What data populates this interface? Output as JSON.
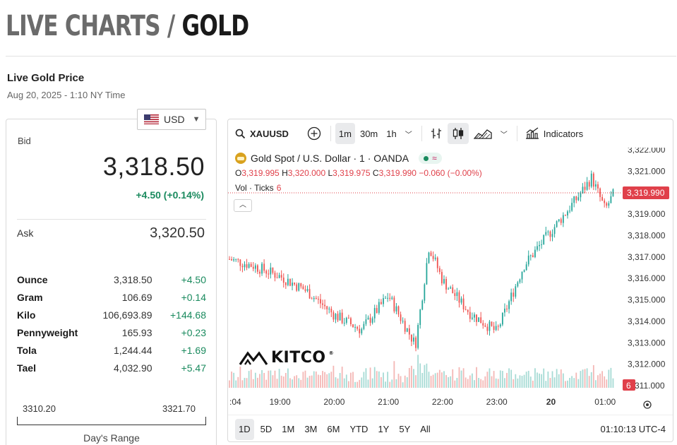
{
  "page": {
    "title_prefix": "LIVE CHARTS / ",
    "title_main": "GOLD",
    "price_heading": "Live Gold Price",
    "timestamp": "Aug 20, 2025 - 1:10 NY Time"
  },
  "currency": {
    "selected": "USD",
    "icon": "us-flag-icon"
  },
  "quote": {
    "bid_label": "Bid",
    "bid": "3,318.50",
    "change": "+4.50 (+0.14%)",
    "ask_label": "Ask",
    "ask": "3,320.50",
    "positive_color": "#1a8a5e"
  },
  "units": [
    {
      "name": "Ounce",
      "price": "3,318.50",
      "change": "+4.50"
    },
    {
      "name": "Gram",
      "price": "106.69",
      "change": "+0.14"
    },
    {
      "name": "Kilo",
      "price": "106,693.89",
      "change": "+144.68"
    },
    {
      "name": "Pennyweight",
      "price": "165.93",
      "change": "+0.23"
    },
    {
      "name": "Tola",
      "price": "1,244.44",
      "change": "+1.69"
    },
    {
      "name": "Tael",
      "price": "4,032.90",
      "change": "+5.47"
    }
  ],
  "day_range": {
    "low": "3310.20",
    "high": "3321.70",
    "label": "Day's Range"
  },
  "chart_toolbar": {
    "symbol": "XAUUSD",
    "intervals": [
      "1m",
      "30m",
      "1h"
    ],
    "active_interval": "1m",
    "indicators_label": "Indicators"
  },
  "chart_legend": {
    "title": "Gold Spot / U.S. Dollar · 1 · OANDA",
    "status_text": "≈",
    "open": "3,319.995",
    "high": "3,320.000",
    "low": "3,319.975",
    "close": "3,319.990",
    "change": "−0.060 (−0.00%)",
    "vol_label": "Vol · Ticks",
    "vol_value": "6"
  },
  "brand": {
    "logo_text": "KITCO",
    "registered": "®"
  },
  "range_buttons": [
    "1D",
    "5D",
    "1M",
    "3M",
    "6M",
    "YTD",
    "1Y",
    "5Y",
    "All"
  ],
  "active_range": "1D",
  "clock": "01:10:13 UTC-4",
  "chart_data": {
    "type": "candlestick",
    "y_ticks": [
      "3,322.000",
      "3,321.000",
      "3,320.000",
      "3,319.000",
      "3,318.000",
      "3,317.000",
      "3,316.000",
      "3,315.000",
      "3,314.000",
      "3,313.000",
      "3,312.000",
      "3,311.000"
    ],
    "ylim": [
      3310.9,
      3322.1
    ],
    "x_ticks": [
      ":04",
      "19:00",
      "20:00",
      "21:00",
      "22:00",
      "23:00",
      "20",
      "01:00"
    ],
    "last_price": "3,319.990",
    "last_volume": "6",
    "up_color": "#26a69a",
    "down_color": "#ef5350",
    "series": [
      {
        "name": "XAUUSD",
        "hour_points": [
          {
            "t": "18:04",
            "price": 3316.9
          },
          {
            "t": "18:30",
            "price": 3316.6
          },
          {
            "t": "19:00",
            "price": 3316.1
          },
          {
            "t": "19:30",
            "price": 3315.4
          },
          {
            "t": "20:00",
            "price": 3314.3
          },
          {
            "t": "20:30",
            "price": 3313.6
          },
          {
            "t": "21:00",
            "price": 3315.2
          },
          {
            "t": "21:30",
            "price": 3312.9
          },
          {
            "t": "21:45",
            "price": 3317.5
          },
          {
            "t": "22:00",
            "price": 3315.9
          },
          {
            "t": "22:30",
            "price": 3314.4
          },
          {
            "t": "23:00",
            "price": 3313.5
          },
          {
            "t": "23:30",
            "price": 3316.6
          },
          {
            "t": "00:00",
            "price": 3318.2
          },
          {
            "t": "00:30",
            "price": 3319.8
          },
          {
            "t": "00:45",
            "price": 3320.7
          },
          {
            "t": "01:00",
            "price": 3319.2
          },
          {
            "t": "01:10",
            "price": 3319.99
          }
        ]
      }
    ]
  }
}
